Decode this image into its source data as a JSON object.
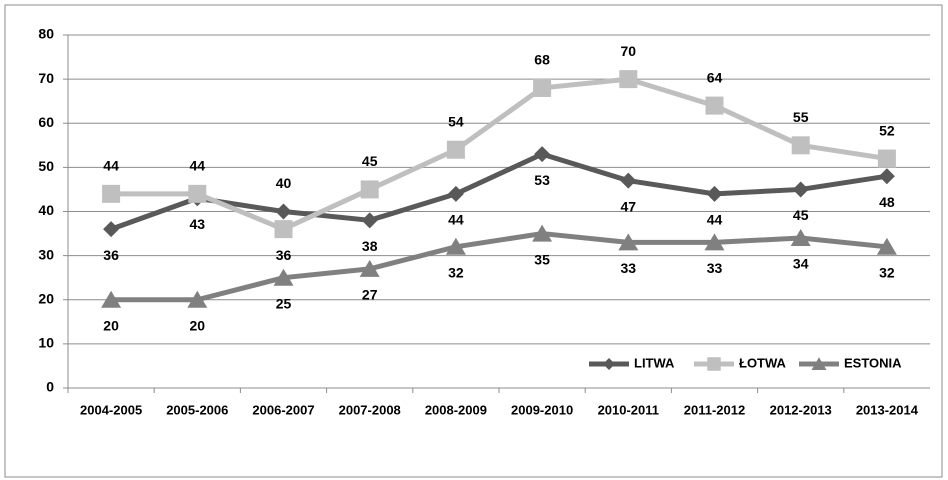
{
  "chart_data": {
    "type": "line",
    "categories": [
      "2004-2005",
      "2005-2006",
      "2006-2007",
      "2007-2008",
      "2008-2009",
      "2009-2010",
      "2010-2011",
      "2011-2012",
      "2012-2013",
      "2013-2014"
    ],
    "series": [
      {
        "name": "LITWA",
        "color": "#595959",
        "values": [
          36,
          43,
          40,
          38,
          44,
          53,
          47,
          44,
          45,
          48
        ]
      },
      {
        "name": "ŁOTWA",
        "color": "#bfbfbf",
        "values": [
          44,
          44,
          36,
          45,
          54,
          68,
          70,
          64,
          55,
          52
        ]
      },
      {
        "name": "ESTONIA",
        "color": "#808080",
        "values": [
          20,
          20,
          25,
          27,
          32,
          35,
          33,
          33,
          34,
          32
        ]
      }
    ],
    "ylim": [
      0,
      80
    ],
    "yticks": [
      0,
      10,
      20,
      30,
      40,
      50,
      60,
      70,
      80
    ],
    "grid": true,
    "legend": "lower right"
  }
}
